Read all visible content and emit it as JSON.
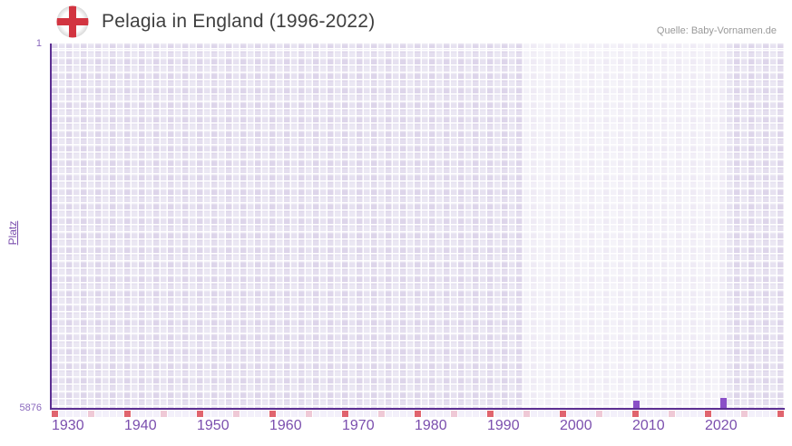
{
  "header": {
    "title": "Pelagia in England (1996-2022)",
    "source": "Quelle: Baby-Vornamen.de",
    "flag_icon": "england-st-george-cross"
  },
  "y_axis": {
    "label": "Platz",
    "top_tick": "1",
    "bottom_tick": "5876"
  },
  "chart_data": {
    "type": "bar",
    "title": "Pelagia in England (1996-2022)",
    "ylabel": "Platz",
    "y_axis_inverted_rank": true,
    "ylim": [
      1,
      5876
    ],
    "x_range": [
      1930,
      2030
    ],
    "x_tick_labels": [
      "1930",
      "1940",
      "1950",
      "1960",
      "1970",
      "1980",
      "1990",
      "2000",
      "2010",
      "2020"
    ],
    "grid": true,
    "highlight_period": {
      "from": 1996,
      "to": 2022
    },
    "series": [
      {
        "name": "Platz",
        "points": [
          {
            "year": 2010,
            "rank": 5759
          },
          {
            "year": 2022,
            "rank": 5715
          }
        ]
      }
    ],
    "strip_marks": {
      "decade_years": [
        1930,
        1940,
        1950,
        1960,
        1970,
        1980,
        1990,
        2000,
        2010,
        2020,
        2030
      ],
      "half_decade_years": [
        1935,
        1945,
        1955,
        1965,
        1975,
        1985,
        1995,
        2005,
        2015,
        2025
      ]
    }
  },
  "colors": {
    "axis": "#5c2f92",
    "bar": "#8a50c7",
    "tick_label": "#7b4fae",
    "y_tick_label": "#8a68bd",
    "decade_cell": "#e0646e",
    "half_decade_cell": "#efc9d6",
    "grid_cell": "#e3ddee",
    "strip_cell": "#f3f0fa",
    "title_text": "#3f3f3f",
    "source_text": "#999999",
    "flag_red": "#d23440"
  }
}
